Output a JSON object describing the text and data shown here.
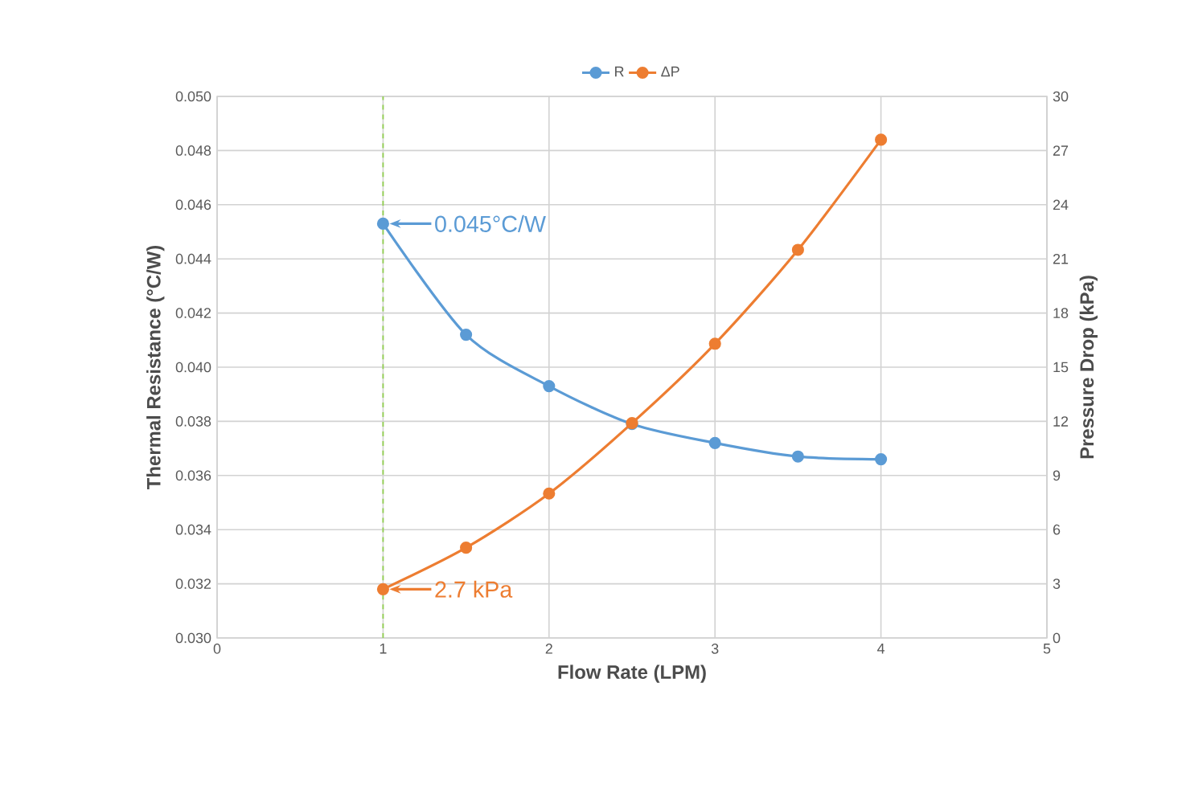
{
  "chart_data": {
    "type": "line",
    "xlabel": "Flow Rate (LPM)",
    "ylabel": "Thermal Resistance (°C/W)",
    "y2label": "Pressure Drop (kPa)",
    "x": [
      1,
      1.5,
      2,
      2.5,
      3,
      3.5,
      4
    ],
    "series": [
      {
        "name": "R",
        "color": "#5b9bd5",
        "values": [
          0.0453,
          0.0412,
          0.0393,
          0.0379,
          0.0372,
          0.0367,
          0.0366
        ]
      },
      {
        "name": "ΔP",
        "color": "#ed7d31",
        "axis": "y2",
        "values": [
          2.7,
          5.0,
          8.0,
          11.9,
          16.3,
          21.5,
          27.6
        ]
      }
    ],
    "xlim": [
      0,
      5
    ],
    "xticks": [
      0,
      1,
      2,
      3,
      4,
      5
    ],
    "ylim": [
      0.03,
      0.05
    ],
    "yticks": [
      {
        "value": 0.03,
        "label": "0.030"
      },
      {
        "value": 0.032,
        "label": "0.032"
      },
      {
        "value": 0.034,
        "label": "0.034"
      },
      {
        "value": 0.036,
        "label": "0.036"
      },
      {
        "value": 0.038,
        "label": "0.038"
      },
      {
        "value": 0.04,
        "label": "0.040"
      },
      {
        "value": 0.042,
        "label": "0.042"
      },
      {
        "value": 0.044,
        "label": "0.044"
      },
      {
        "value": 0.046,
        "label": "0.046"
      },
      {
        "value": 0.048,
        "label": "0.048"
      },
      {
        "value": 0.05,
        "label": "0.050"
      }
    ],
    "y2lim": [
      0,
      30
    ],
    "y2ticks": [
      0,
      3,
      6,
      9,
      12,
      15,
      18,
      21,
      24,
      27,
      30
    ],
    "ref_lines": [
      {
        "axis": "x",
        "value": 1,
        "color": "#92d050",
        "line_style": "dashed"
      }
    ],
    "annotations": [
      {
        "text": "0.045°C/W",
        "x": 1,
        "y": 0.0453
      },
      {
        "text": "2.7 kPa",
        "x": 1,
        "y": 0.0318
      }
    ],
    "grid": true,
    "legend": "top",
    "marker": "circle"
  }
}
